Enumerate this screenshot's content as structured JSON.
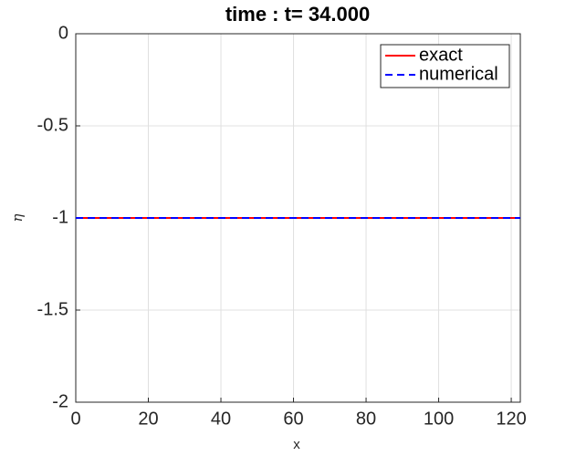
{
  "chart_data": {
    "type": "line",
    "title": "time : t= 34.000",
    "xlabel": "x",
    "ylabel": "η",
    "x": [
      0,
      122.5
    ],
    "series": [
      {
        "name": "exact",
        "color": "#ff0000",
        "linestyle": "solid",
        "values": [
          -1,
          -1
        ]
      },
      {
        "name": "numerical",
        "color": "#0000ff",
        "linestyle": "dashed",
        "values": [
          -1,
          -1
        ]
      }
    ],
    "xlim": [
      0,
      122.5
    ],
    "xticks": [
      0,
      20,
      40,
      60,
      80,
      100,
      120
    ],
    "ylim": [
      -2,
      0
    ],
    "yticks": [
      0,
      -0.5,
      -1,
      -1.5,
      -2
    ],
    "grid": true,
    "legend": "northeast"
  }
}
